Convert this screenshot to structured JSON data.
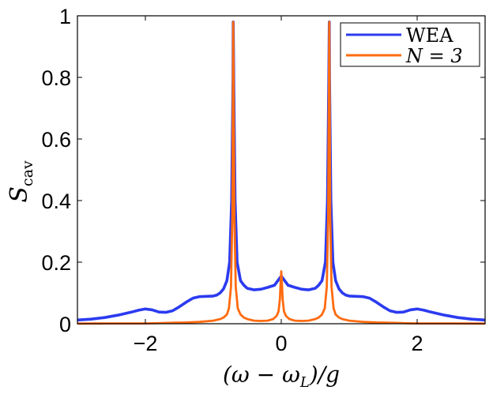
{
  "chart_data": {
    "type": "line",
    "title": "",
    "xlabel": "(ω − ω_L)/g",
    "ylabel": "S_cav",
    "xlim": [
      -3,
      3
    ],
    "ylim": [
      0,
      1
    ],
    "x_ticks": [
      -2,
      0,
      2
    ],
    "x_tick_labels": [
      "−2",
      "0",
      "2"
    ],
    "y_ticks": [
      0,
      0.2,
      0.4,
      0.6,
      0.8,
      1
    ],
    "y_tick_labels": [
      "0",
      "0.2",
      "0.4",
      "0.6",
      "0.8",
      "1"
    ],
    "grid": false,
    "legend_position": "top-right",
    "series": [
      {
        "name": "WEA",
        "color": "#2b3bf0",
        "x": [
          -3.0,
          -2.8,
          -2.6,
          -2.4,
          -2.2,
          -2.1,
          -2.0,
          -1.9,
          -1.8,
          -1.7,
          -1.6,
          -1.5,
          -1.4,
          -1.3,
          -1.2,
          -1.1,
          -1.0,
          -0.95,
          -0.9,
          -0.85,
          -0.8,
          -0.76,
          -0.73,
          -0.71,
          -0.707,
          -0.7,
          -0.68,
          -0.65,
          -0.6,
          -0.55,
          -0.5,
          -0.4,
          -0.3,
          -0.2,
          -0.1,
          -0.05,
          0.0,
          0.05,
          0.1,
          0.2,
          0.3,
          0.4,
          0.5,
          0.55,
          0.6,
          0.65,
          0.68,
          0.7,
          0.707,
          0.71,
          0.73,
          0.76,
          0.8,
          0.85,
          0.9,
          0.95,
          1.0,
          1.1,
          1.2,
          1.3,
          1.4,
          1.5,
          1.6,
          1.7,
          1.8,
          1.9,
          2.0,
          2.1,
          2.2,
          2.4,
          2.6,
          2.8,
          3.0
        ],
        "y": [
          0.012,
          0.015,
          0.02,
          0.028,
          0.038,
          0.044,
          0.048,
          0.045,
          0.038,
          0.037,
          0.042,
          0.055,
          0.07,
          0.083,
          0.088,
          0.089,
          0.09,
          0.093,
          0.1,
          0.113,
          0.14,
          0.2,
          0.4,
          0.8,
          0.98,
          0.8,
          0.4,
          0.2,
          0.14,
          0.125,
          0.115,
          0.11,
          0.112,
          0.118,
          0.125,
          0.14,
          0.155,
          0.14,
          0.125,
          0.118,
          0.112,
          0.11,
          0.115,
          0.125,
          0.14,
          0.2,
          0.4,
          0.8,
          0.98,
          0.8,
          0.4,
          0.2,
          0.14,
          0.113,
          0.1,
          0.093,
          0.09,
          0.089,
          0.088,
          0.083,
          0.07,
          0.055,
          0.042,
          0.037,
          0.038,
          0.045,
          0.048,
          0.044,
          0.038,
          0.028,
          0.02,
          0.015,
          0.012
        ]
      },
      {
        "name": "N = 3",
        "color": "#ff6b0f",
        "x": [
          -3.0,
          -2.5,
          -2.0,
          -1.8,
          -1.6,
          -1.4,
          -1.2,
          -1.0,
          -0.9,
          -0.85,
          -0.8,
          -0.77,
          -0.74,
          -0.72,
          -0.707,
          -0.69,
          -0.67,
          -0.64,
          -0.6,
          -0.55,
          -0.5,
          -0.4,
          -0.3,
          -0.2,
          -0.12,
          -0.07,
          -0.04,
          -0.02,
          -0.01,
          0.0,
          0.01,
          0.02,
          0.04,
          0.07,
          0.12,
          0.2,
          0.3,
          0.4,
          0.5,
          0.55,
          0.6,
          0.64,
          0.67,
          0.69,
          0.707,
          0.72,
          0.74,
          0.77,
          0.8,
          0.85,
          0.9,
          1.0,
          1.2,
          1.4,
          1.6,
          1.8,
          2.0,
          2.5,
          3.0
        ],
        "y": [
          0.0005,
          0.001,
          0.001,
          0.002,
          0.003,
          0.004,
          0.006,
          0.01,
          0.015,
          0.02,
          0.03,
          0.05,
          0.12,
          0.35,
          0.98,
          0.35,
          0.12,
          0.05,
          0.03,
          0.02,
          0.015,
          0.01,
          0.009,
          0.01,
          0.015,
          0.025,
          0.04,
          0.08,
          0.13,
          0.17,
          0.13,
          0.08,
          0.04,
          0.025,
          0.015,
          0.01,
          0.009,
          0.01,
          0.015,
          0.02,
          0.03,
          0.05,
          0.12,
          0.35,
          0.98,
          0.35,
          0.12,
          0.05,
          0.03,
          0.02,
          0.015,
          0.01,
          0.006,
          0.004,
          0.003,
          0.002,
          0.001,
          0.001,
          0.0005
        ]
      }
    ]
  }
}
